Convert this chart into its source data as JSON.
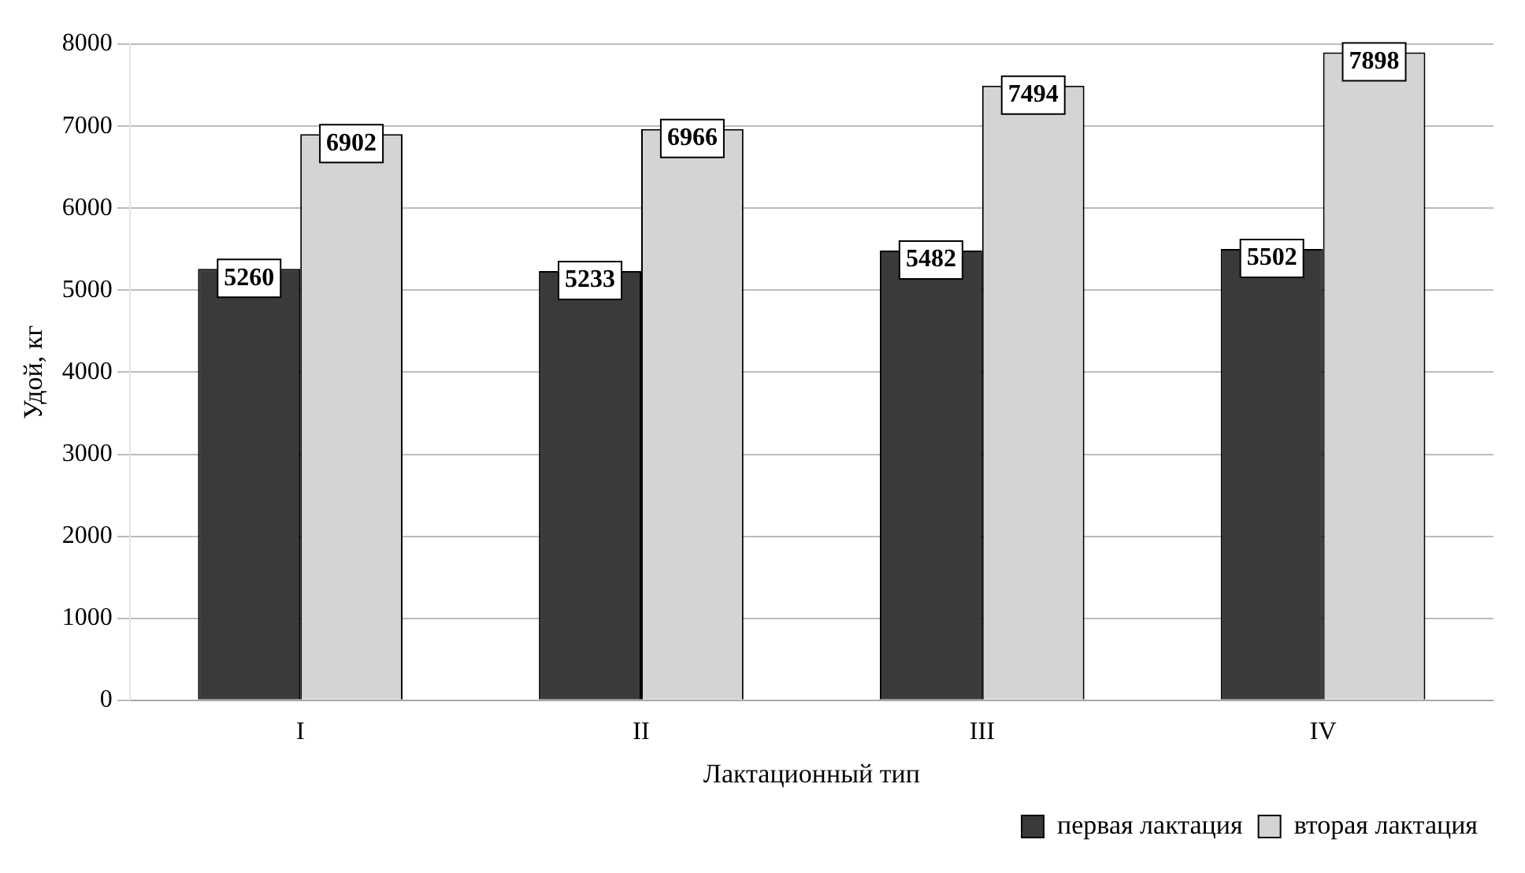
{
  "chart_data": {
    "type": "bar",
    "xlabel": "Лактационный тип",
    "ylabel": "Удой, кг",
    "categories": [
      "I",
      "II",
      "III",
      "IV"
    ],
    "series": [
      {
        "name": "первая лактация",
        "color": "#3a3a3a",
        "values": [
          5260,
          5233,
          5482,
          5502
        ]
      },
      {
        "name": "вторая лактация",
        "color": "#d4d4d4",
        "values": [
          6902,
          6966,
          7494,
          7898
        ]
      }
    ],
    "ylim": [
      0,
      8000
    ],
    "yticks": [
      0,
      1000,
      2000,
      3000,
      4000,
      5000,
      6000,
      7000,
      8000
    ],
    "grid": "y",
    "legend": "bottom right",
    "data_labels": true
  }
}
